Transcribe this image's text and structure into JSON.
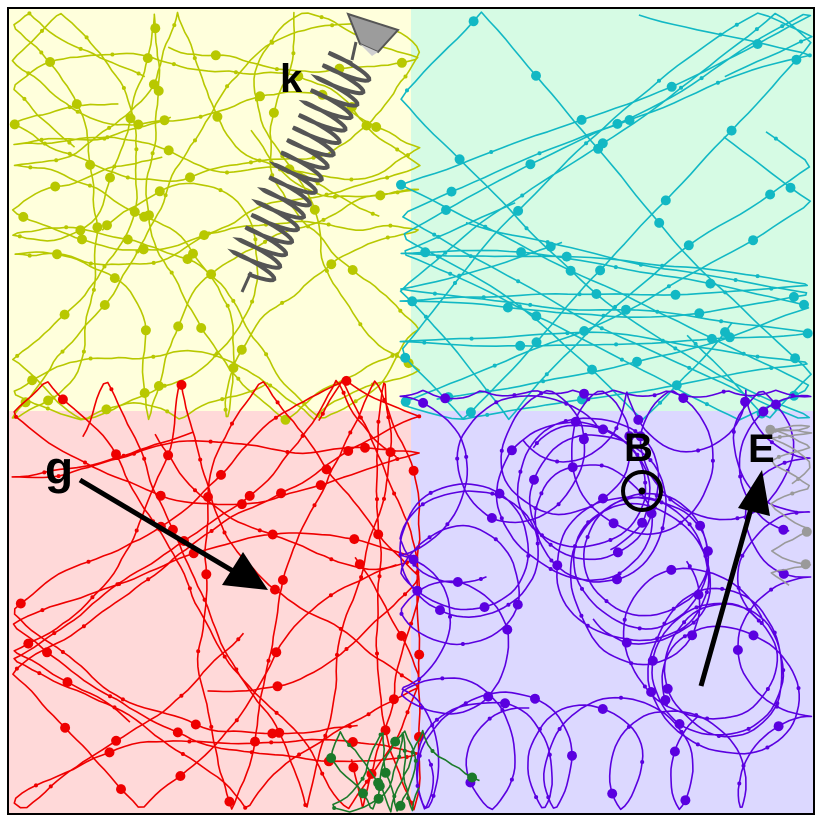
{
  "labels": {
    "spring_constant": "k",
    "gravity": "g",
    "magnetic_field": "B",
    "electric_field": "E"
  },
  "colors": {
    "quadrant_top_left": "#ffffdc",
    "quadrant_top_right": "#d6fbe4",
    "quadrant_bottom_left": "#ffd9d9",
    "quadrant_bottom_right": "#dcd8ff",
    "trajectory_spring": "#b8c800",
    "trajectory_free": "#12b8c4",
    "trajectory_gravity": "#ee0000",
    "trajectory_magnetic": "#5a00e0",
    "trajectory_crossover_green": "#1a7a2a",
    "trajectory_crossover_gray": "#9a9a9a",
    "spring": "#555555",
    "arrow": "#000000"
  },
  "icons": {
    "spring_anchor": "spring-anchor-icon",
    "magnetic_field_out_of_page": "circle-dot-icon"
  }
}
